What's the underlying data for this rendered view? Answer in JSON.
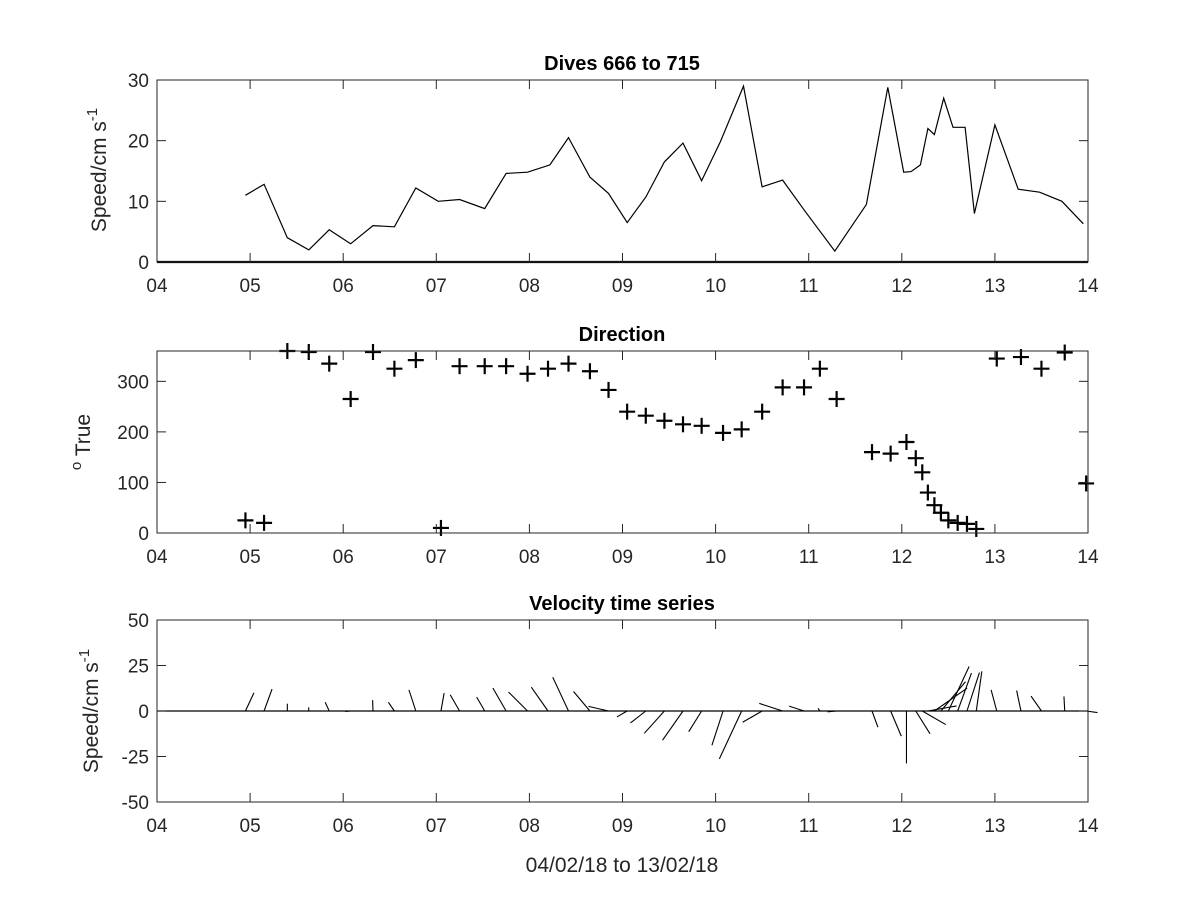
{
  "chart_data": [
    {
      "type": "line",
      "title": "Dives 666 to 715",
      "ylabel_base": "Speed/cm s",
      "ylabel_sup": "-1",
      "xlim": [
        4,
        14
      ],
      "ylim": [
        0,
        30
      ],
      "xticks": [
        4,
        5,
        6,
        7,
        8,
        9,
        10,
        11,
        12,
        13,
        14
      ],
      "xtick_labels": [
        "04",
        "05",
        "06",
        "07",
        "08",
        "09",
        "10",
        "11",
        "12",
        "13",
        "14"
      ],
      "yticks": [
        0,
        10,
        20,
        30
      ],
      "ytick_labels": [
        "0",
        "10",
        "20",
        "30"
      ],
      "series": [
        {
          "x": [
            4.95,
            5.15,
            5.4,
            5.63,
            5.85,
            6.08,
            6.32,
            6.55,
            6.78,
            7.02,
            7.25,
            7.52,
            7.75,
            7.98,
            8.22,
            8.42,
            8.65,
            8.85,
            9.05,
            9.25,
            9.45,
            9.65,
            9.85,
            10.05,
            10.3,
            10.5,
            10.72,
            10.95,
            11.28,
            11.62,
            11.85,
            12.02,
            12.1,
            12.2,
            12.28,
            12.35,
            12.45,
            12.55,
            12.68,
            12.78,
            13.0,
            13.25,
            13.48,
            13.72,
            13.95
          ],
          "y": [
            11,
            12.8,
            4,
            2,
            5.3,
            3,
            6,
            5.8,
            12.2,
            10,
            10.3,
            8.8,
            14.6,
            14.8,
            16,
            20.5,
            14,
            11.3,
            6.5,
            10.7,
            16.5,
            19.6,
            13.4,
            19.8,
            29,
            12.4,
            13.5,
            8.6,
            1.8,
            9.5,
            28.8,
            14.8,
            14.9,
            16,
            22,
            21,
            27,
            22.2,
            22.2,
            8,
            22.6,
            12,
            11.5,
            10,
            6.3
          ]
        }
      ]
    },
    {
      "type": "scatter",
      "title": "Direction",
      "ylabel_sup": "o",
      "ylabel_base": " True",
      "xlim": [
        4,
        14
      ],
      "ylim": [
        0,
        360
      ],
      "xticks": [
        4,
        5,
        6,
        7,
        8,
        9,
        10,
        11,
        12,
        13,
        14
      ],
      "xtick_labels": [
        "04",
        "05",
        "06",
        "07",
        "08",
        "09",
        "10",
        "11",
        "12",
        "13",
        "14"
      ],
      "yticks": [
        0,
        100,
        200,
        300
      ],
      "ytick_labels": [
        "0",
        "100",
        "200",
        "300"
      ],
      "marker": "+",
      "series": [
        {
          "x": [
            4.95,
            5.15,
            5.4,
            5.63,
            5.85,
            6.08,
            6.32,
            6.55,
            6.78,
            7.05,
            7.25,
            7.52,
            7.75,
            7.98,
            8.2,
            8.42,
            8.65,
            8.85,
            9.05,
            9.25,
            9.45,
            9.65,
            9.85,
            10.08,
            10.28,
            10.5,
            10.72,
            10.95,
            11.12,
            11.3,
            11.68,
            11.88,
            12.05,
            12.15,
            12.22,
            12.28,
            12.35,
            12.42,
            12.5,
            12.6,
            12.7,
            12.8,
            13.02,
            13.28,
            13.5,
            13.75,
            13.98
          ],
          "y": [
            25,
            20,
            360,
            358,
            335,
            265,
            358,
            325,
            342,
            10,
            330,
            330,
            330,
            315,
            325,
            335,
            320,
            283,
            240,
            232,
            222,
            215,
            212,
            198,
            205,
            240,
            288,
            288,
            325,
            265,
            160,
            157,
            180,
            148,
            120,
            80,
            55,
            40,
            25,
            20,
            18,
            8,
            345,
            348,
            325,
            357,
            98
          ]
        }
      ]
    },
    {
      "type": "line",
      "subtype": "stick",
      "title": "Velocity time series",
      "ylabel_base": "Speed/cm s",
      "ylabel_sup": "-1",
      "xlabel": "04/02/18 to 13/02/18",
      "xlim": [
        4,
        14
      ],
      "ylim": [
        -50,
        50
      ],
      "xticks": [
        4,
        5,
        6,
        7,
        8,
        9,
        10,
        11,
        12,
        13,
        14
      ],
      "xtick_labels": [
        "04",
        "05",
        "06",
        "07",
        "08",
        "09",
        "10",
        "11",
        "12",
        "13",
        "14"
      ],
      "yticks": [
        -50,
        -25,
        0,
        25,
        50
      ],
      "ytick_labels": [
        "-50",
        "-25",
        "0",
        "25",
        "50"
      ],
      "series": [
        {
          "x": [
            4.95,
            5.15,
            5.4,
            5.63,
            5.85,
            6.08,
            6.32,
            6.55,
            6.78,
            7.05,
            7.25,
            7.52,
            7.75,
            7.98,
            8.2,
            8.42,
            8.65,
            8.85,
            9.05,
            9.25,
            9.45,
            9.65,
            9.85,
            10.08,
            10.28,
            10.5,
            10.72,
            10.95,
            11.12,
            11.3,
            11.68,
            11.88,
            12.05,
            12.15,
            12.22,
            12.28,
            12.35,
            12.42,
            12.5,
            12.6,
            12.7,
            12.8,
            13.02,
            13.28,
            13.5,
            13.75,
            13.98
          ],
          "speed": [
            11,
            12.8,
            4,
            2,
            5.3,
            3,
            6,
            5.8,
            12.2,
            10,
            10.3,
            8.8,
            14.6,
            14.8,
            16,
            20.5,
            14,
            11.3,
            6.5,
            10.7,
            16.5,
            19.6,
            13.4,
            19.8,
            29,
            12.4,
            13.5,
            8.6,
            1.8,
            5,
            9.5,
            15,
            28.8,
            14.8,
            14.9,
            16,
            22,
            21,
            27,
            22.2,
            22.2,
            22,
            12,
            11.5,
            10,
            8,
            6.3
          ],
          "direction": [
            25,
            20,
            360,
            358,
            335,
            265,
            358,
            325,
            342,
            10,
            330,
            330,
            330,
            315,
            325,
            335,
            320,
            283,
            240,
            232,
            222,
            215,
            212,
            198,
            205,
            240,
            288,
            288,
            325,
            265,
            160,
            157,
            180,
            148,
            120,
            80,
            55,
            40,
            25,
            20,
            18,
            8,
            345,
            348,
            325,
            357,
            98
          ]
        }
      ]
    }
  ]
}
